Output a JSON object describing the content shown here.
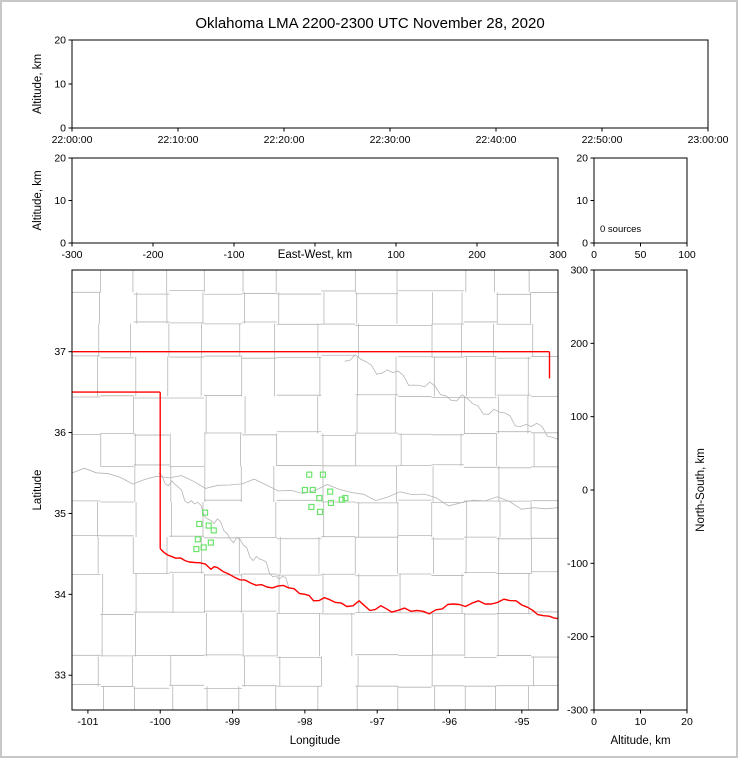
{
  "title": "Oklahoma LMA 2200-2300 UTC November 28, 2020",
  "colors": {
    "axis": "#000000",
    "county_line": "#b5b5b5",
    "state_border": "#ff0000",
    "source_marker": "#6ce36c",
    "frame": "#c8c8c8",
    "background": "#ffffff"
  },
  "chart_data": {
    "type": "scatter",
    "title": "Oklahoma LMA 2200-2300 UTC November 28, 2020",
    "grid": "off",
    "panels": [
      {
        "name": "altitude-vs-time",
        "xlim": [
          0,
          3600
        ],
        "ylim": [
          0,
          20
        ],
        "xticks": [
          0,
          600,
          1200,
          1800,
          2400,
          3000,
          3600
        ],
        "xtick_labels": [
          "22:00:00",
          "22:10:00",
          "22:20:00",
          "22:30:00",
          "22:40:00",
          "22:50:00",
          "23:00:00"
        ],
        "yticks": [
          0,
          10,
          20
        ],
        "ytick_labels": [
          "0",
          "10",
          "20"
        ],
        "xlabel": "",
        "ylabel": "Altitude, km",
        "points": []
      },
      {
        "name": "altitude-vs-east-west",
        "xlim": [
          -300,
          300
        ],
        "ylim": [
          0,
          20
        ],
        "xticks": [
          -300,
          -200,
          -100,
          0,
          100,
          200,
          300
        ],
        "xtick_labels": [
          "-300",
          "-200",
          "-100",
          "",
          "100",
          "200",
          "300"
        ],
        "yticks": [
          0,
          10,
          20
        ],
        "ytick_labels": [
          "0",
          "10",
          "20"
        ],
        "xlabel": "East-West, km",
        "xlabel_inline": true,
        "ylabel": "Altitude, km",
        "points": []
      },
      {
        "name": "source-count-vs-altitude",
        "xlim": [
          0,
          100
        ],
        "ylim": [
          0,
          20
        ],
        "xticks": [
          0,
          50,
          100
        ],
        "xtick_labels": [
          "0",
          "50",
          "100"
        ],
        "yticks": [
          0,
          10,
          20
        ],
        "ytick_labels": [
          "0",
          "10",
          "20"
        ],
        "annotation": "0 sources",
        "points": []
      },
      {
        "name": "plan-view-map",
        "xlim": [
          -101.22,
          -94.5
        ],
        "ylim": [
          32.57,
          38.01
        ],
        "xticks": [
          -101,
          -100,
          -99,
          -98,
          -97,
          -96,
          -95
        ],
        "xtick_labels": [
          "-101",
          "-100",
          "-99",
          "-98",
          "-97",
          "-96",
          "-95"
        ],
        "yticks": [
          33,
          34,
          35,
          36,
          37
        ],
        "ytick_labels": [
          "33",
          "34",
          "35",
          "36",
          "37"
        ],
        "xlabel": "Longitude",
        "ylabel": "Latitude"
      },
      {
        "name": "north-south-vs-altitude",
        "xlim": [
          0,
          20
        ],
        "ylim": [
          -300,
          300
        ],
        "xticks": [
          0,
          10,
          20
        ],
        "xtick_labels": [
          "0",
          "10",
          "20"
        ],
        "yticks": [
          -300,
          -200,
          -100,
          0,
          100,
          200,
          300
        ],
        "ytick_labels": [
          "-300",
          "-200",
          "-100",
          "0",
          "100",
          "200",
          "300"
        ],
        "xlabel": "Altitude, km",
        "ylabel_right": "North-South, km",
        "points": []
      }
    ],
    "map": {
      "sources_lonlat": [
        [
          -97.94,
          35.48
        ],
        [
          -97.75,
          35.48
        ],
        [
          -98.0,
          35.29
        ],
        [
          -97.89,
          35.29
        ],
        [
          -97.65,
          35.27
        ],
        [
          -97.8,
          35.19
        ],
        [
          -97.64,
          35.13
        ],
        [
          -97.49,
          35.17
        ],
        [
          -97.91,
          35.08
        ],
        [
          -97.79,
          35.02
        ],
        [
          -97.44,
          35.19
        ],
        [
          -99.38,
          35.01
        ],
        [
          -99.46,
          34.87
        ],
        [
          -99.33,
          34.85
        ],
        [
          -99.26,
          34.79
        ],
        [
          -99.48,
          34.68
        ],
        [
          -99.3,
          34.64
        ],
        [
          -99.4,
          34.58
        ],
        [
          -99.5,
          34.56
        ]
      ],
      "state_border": [
        [
          [
            -101.22,
            37.0
          ],
          [
            -94.617,
            37.0
          ]
        ],
        [
          [
            -94.617,
            37.0
          ],
          [
            -94.617,
            36.67
          ]
        ],
        [
          [
            -101.22,
            36.5
          ],
          [
            -100.0,
            36.5
          ]
        ],
        [
          [
            -100.0,
            36.5
          ],
          [
            -100.0,
            34.565
          ]
        ]
      ],
      "red_river": [
        [
          -100.0,
          34.565
        ],
        [
          -99.92,
          34.5
        ],
        [
          -99.85,
          34.47
        ],
        [
          -99.72,
          34.45
        ],
        [
          -99.6,
          34.4
        ],
        [
          -99.45,
          34.39
        ],
        [
          -99.3,
          34.31
        ],
        [
          -99.21,
          34.33
        ],
        [
          -99.05,
          34.25
        ],
        [
          -98.9,
          34.18
        ],
        [
          -98.75,
          34.14
        ],
        [
          -98.6,
          34.12
        ],
        [
          -98.45,
          34.08
        ],
        [
          -98.3,
          34.11
        ],
        [
          -98.15,
          34.07
        ],
        [
          -98.0,
          34.0
        ],
        [
          -97.88,
          33.92
        ],
        [
          -97.73,
          33.96
        ],
        [
          -97.58,
          33.9
        ],
        [
          -97.42,
          33.85
        ],
        [
          -97.25,
          33.92
        ],
        [
          -97.1,
          33.8
        ],
        [
          -96.95,
          33.86
        ],
        [
          -96.8,
          33.78
        ],
        [
          -96.62,
          33.83
        ],
        [
          -96.45,
          33.8
        ],
        [
          -96.28,
          33.76
        ],
        [
          -96.1,
          33.82
        ],
        [
          -95.95,
          33.88
        ],
        [
          -95.78,
          33.85
        ],
        [
          -95.6,
          33.92
        ],
        [
          -95.42,
          33.88
        ],
        [
          -95.25,
          33.94
        ],
        [
          -95.08,
          33.92
        ],
        [
          -94.92,
          33.84
        ],
        [
          -94.78,
          33.75
        ],
        [
          -94.62,
          33.73
        ],
        [
          -94.5,
          33.7
        ]
      ]
    }
  }
}
